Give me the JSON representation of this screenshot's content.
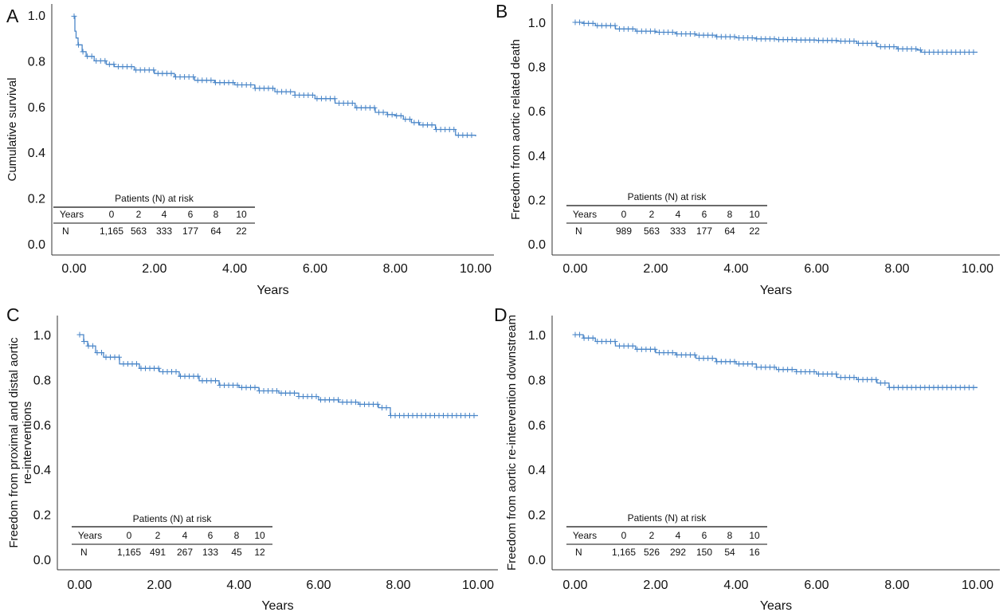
{
  "chart_data": [
    {
      "panel_label": "A",
      "type": "line",
      "ylabel": [
        "Cumulative survival"
      ],
      "xlabel": "Years",
      "xlim": [
        0,
        10
      ],
      "ylim": [
        0,
        1
      ],
      "xticks": [
        "0.00",
        "2.00",
        "4.00",
        "6.00",
        "8.00",
        "10.00"
      ],
      "yticks": [
        "0.0",
        "0.2",
        "0.4",
        "0.6",
        "0.8",
        "1.0"
      ],
      "grid": false,
      "color": "#4a86c8",
      "series": [
        {
          "x": [
            0,
            0.02,
            0.05,
            0.1,
            0.2,
            0.3,
            0.5,
            0.8,
            1.0,
            1.5,
            2.0,
            2.5,
            3.0,
            3.5,
            4.0,
            4.5,
            5.0,
            5.5,
            6.0,
            6.5,
            7.0,
            7.5,
            7.8,
            8.0,
            8.2,
            8.4,
            8.6,
            9.0,
            9.5,
            10.0
          ],
          "y": [
            0.995,
            0.93,
            0.9,
            0.87,
            0.84,
            0.82,
            0.8,
            0.785,
            0.775,
            0.76,
            0.745,
            0.73,
            0.715,
            0.705,
            0.695,
            0.68,
            0.665,
            0.65,
            0.635,
            0.615,
            0.595,
            0.575,
            0.565,
            0.56,
            0.545,
            0.53,
            0.52,
            0.5,
            0.475,
            0.47
          ]
        }
      ],
      "risk_table": {
        "title": "Patients (N) at risk",
        "header": [
          "Years",
          "0",
          "2",
          "4",
          "6",
          "8",
          "10"
        ],
        "row": [
          "N",
          "1,165",
          "563",
          "333",
          "177",
          "64",
          "22"
        ]
      }
    },
    {
      "panel_label": "B",
      "type": "line",
      "ylabel": [
        "Freedom from aortic related death"
      ],
      "xlabel": "Years",
      "xlim": [
        0,
        10
      ],
      "ylim": [
        0,
        1
      ],
      "xticks": [
        "0.00",
        "2.00",
        "4.00",
        "6.00",
        "8.00",
        "10.00"
      ],
      "yticks": [
        "0.0",
        "0.2",
        "0.4",
        "0.6",
        "0.8",
        "1.0"
      ],
      "grid": false,
      "color": "#4a86c8",
      "series": [
        {
          "x": [
            0,
            0.2,
            0.5,
            1.0,
            1.5,
            2.0,
            2.5,
            3.0,
            3.5,
            4.0,
            4.5,
            5.0,
            5.5,
            6.0,
            6.5,
            7.0,
            7.5,
            8.0,
            8.5,
            8.6,
            9.0,
            9.5,
            10.0
          ],
          "y": [
            1.0,
            0.995,
            0.985,
            0.97,
            0.96,
            0.955,
            0.948,
            0.942,
            0.935,
            0.93,
            0.925,
            0.922,
            0.92,
            0.918,
            0.915,
            0.905,
            0.89,
            0.88,
            0.875,
            0.865,
            0.865,
            0.865,
            0.865
          ]
        }
      ],
      "risk_table": {
        "title": "Patients (N) at risk",
        "header": [
          "Years",
          "0",
          "2",
          "4",
          "6",
          "8",
          "10"
        ],
        "row": [
          "N",
          "989",
          "563",
          "333",
          "177",
          "64",
          "22"
        ]
      }
    },
    {
      "panel_label": "C",
      "type": "line",
      "ylabel": [
        "Freedom from proximal and distal aortic",
        "re-interventions"
      ],
      "xlabel": "Years",
      "xlim": [
        0,
        10
      ],
      "ylim": [
        0,
        1
      ],
      "xticks": [
        "0.00",
        "2.00",
        "4.00",
        "6.00",
        "8.00",
        "10.00"
      ],
      "yticks": [
        "0.0",
        "0.2",
        "0.4",
        "0.6",
        "0.8",
        "1.0"
      ],
      "grid": false,
      "color": "#4a86c8",
      "series": [
        {
          "x": [
            0,
            0.1,
            0.2,
            0.4,
            0.6,
            1.0,
            1.5,
            2.0,
            2.5,
            3.0,
            3.5,
            4.0,
            4.5,
            5.0,
            5.5,
            6.0,
            6.5,
            7.0,
            7.5,
            7.65,
            7.8,
            8.0,
            9.0,
            10.0
          ],
          "y": [
            1.0,
            0.97,
            0.95,
            0.92,
            0.9,
            0.87,
            0.85,
            0.835,
            0.815,
            0.795,
            0.775,
            0.765,
            0.75,
            0.74,
            0.725,
            0.71,
            0.7,
            0.69,
            0.675,
            0.675,
            0.64,
            0.64,
            0.64,
            0.64
          ]
        }
      ],
      "risk_table": {
        "title": "Patients (N) at risk",
        "header": [
          "Years",
          "0",
          "2",
          "4",
          "6",
          "8",
          "10"
        ],
        "row": [
          "N",
          "1,165",
          "491",
          "267",
          "133",
          "45",
          "12"
        ]
      }
    },
    {
      "panel_label": "D",
      "type": "line",
      "ylabel": [
        "Freedom from aortic re-intervention downstream"
      ],
      "xlabel": "Years",
      "xlim": [
        0,
        10
      ],
      "ylim": [
        0,
        1
      ],
      "xticks": [
        "0.00",
        "2.00",
        "4.00",
        "6.00",
        "8.00",
        "10.00"
      ],
      "yticks": [
        "0.0",
        "0.2",
        "0.4",
        "0.6",
        "0.8",
        "1.0"
      ],
      "grid": false,
      "color": "#4a86c8",
      "series": [
        {
          "x": [
            0,
            0.2,
            0.5,
            1.0,
            1.5,
            2.0,
            2.5,
            3.0,
            3.5,
            4.0,
            4.5,
            5.0,
            5.5,
            6.0,
            6.5,
            7.0,
            7.5,
            7.7,
            7.8,
            8.0,
            9.0,
            10.0
          ],
          "y": [
            1.0,
            0.985,
            0.97,
            0.95,
            0.935,
            0.92,
            0.91,
            0.895,
            0.88,
            0.87,
            0.855,
            0.845,
            0.835,
            0.825,
            0.81,
            0.8,
            0.785,
            0.785,
            0.765,
            0.765,
            0.765,
            0.765
          ]
        }
      ],
      "risk_table": {
        "title": "Patients (N) at risk",
        "header": [
          "Years",
          "0",
          "2",
          "4",
          "6",
          "8",
          "10"
        ],
        "row": [
          "N",
          "1,165",
          "526",
          "292",
          "150",
          "54",
          "16"
        ]
      }
    }
  ]
}
